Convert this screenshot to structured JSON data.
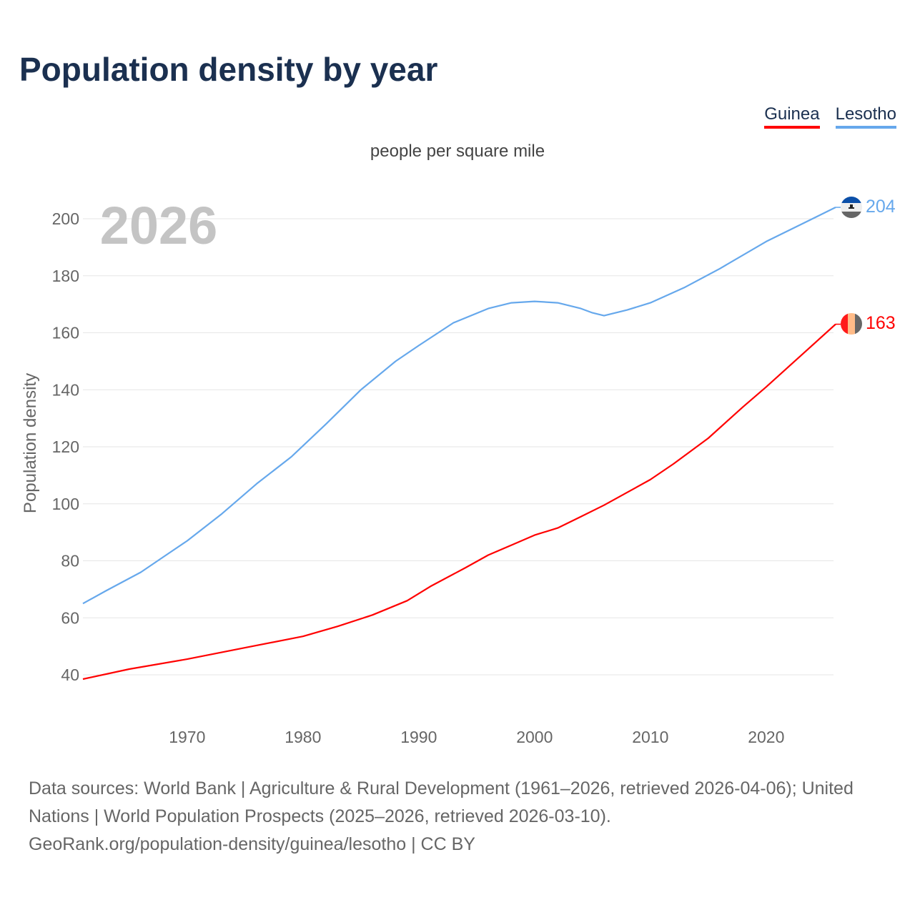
{
  "title": "Population density by year",
  "subtitle": "people per square mile",
  "year_watermark": "2026",
  "footer": {
    "sources": "Data sources: World Bank | Agriculture & Rural Development (1961–2026, retrieved 2026-04-06); United Nations | World Population Prospects (2025–2026, retrieved 2026-03-10).",
    "link": "GeoRank.org/population-density/guinea/lesotho | CC BY"
  },
  "chart_data": {
    "type": "line",
    "title": "Population density by year",
    "xlabel": "",
    "ylabel": "Population density",
    "xlim": [
      1961,
      2026
    ],
    "ylim": [
      40,
      210
    ],
    "xticks": [
      1970,
      1980,
      1990,
      2000,
      2010,
      2020
    ],
    "yticks": [
      40,
      60,
      80,
      100,
      120,
      140,
      160,
      180,
      200
    ],
    "grid": true,
    "legend_position": "top-right",
    "series": [
      {
        "name": "Guinea",
        "color": "#ff0000",
        "end_label": "163",
        "x": [
          1961,
          1965,
          1970,
          1975,
          1980,
          1983,
          1986,
          1989,
          1991,
          1994,
          1996,
          1998,
          2000,
          2002,
          2004,
          2006,
          2008,
          2010,
          2012,
          2015,
          2018,
          2020,
          2023,
          2026
        ],
        "y": [
          38.5,
          42,
          45.5,
          49.5,
          53.5,
          57,
          61,
          66,
          71,
          77.5,
          82,
          85.5,
          89,
          91.5,
          95.5,
          99.5,
          104,
          108.5,
          114,
          123,
          134,
          141,
          152,
          163
        ]
      },
      {
        "name": "Lesotho",
        "color": "#66a8ec",
        "end_label": "204",
        "x": [
          1961,
          1963,
          1966,
          1968,
          1970,
          1973,
          1976,
          1979,
          1982,
          1985,
          1988,
          1990,
          1993,
          1996,
          1998,
          2000,
          2002,
          2004,
          2005,
          2006,
          2008,
          2010,
          2013,
          2016,
          2020,
          2023,
          2026
        ],
        "y": [
          65,
          69.5,
          76,
          81.5,
          87,
          96.5,
          107,
          116.5,
          128,
          140,
          150,
          155.5,
          163.5,
          168.5,
          170.5,
          171,
          170.5,
          168.5,
          167,
          166,
          168,
          170.5,
          176,
          182.5,
          192,
          198,
          204
        ]
      }
    ]
  }
}
